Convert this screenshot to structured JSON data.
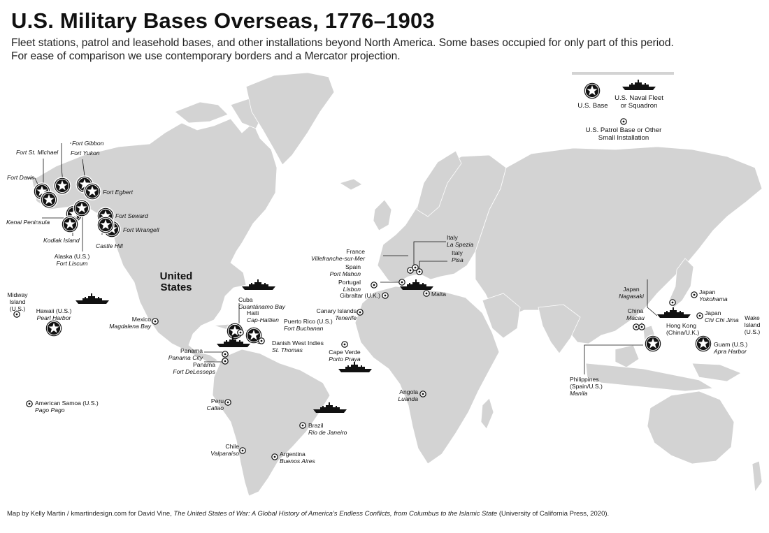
{
  "title": "U.S. Military Bases Overseas, 1776–1903",
  "subtitle_line1": "Fleet stations, patrol and leasehold bases, and other installations beyond North America. Some bases occupied for only part of this period.",
  "subtitle_line2": "For ease of comparison we use contemporary borders and a Mercator projection.",
  "country_label": "United States",
  "legend": {
    "base": "U.S. Base",
    "fleet": "U.S. Naval Fleet or Squadron",
    "patrol": "U.S. Patrol Base or Other Small Installation"
  },
  "labels": {
    "fort_gibbon": "Fort Gibbon",
    "fort_st_michael": "Fort St. Michael",
    "fort_yukon": "Fort Yukon",
    "fort_davis": "Fort Davis",
    "fort_egbert": "Fort Egbert",
    "fort_seward": "Fort Seward",
    "kenai": "Kenai Peninsula",
    "fort_wrangell": "Fort Wrangell",
    "kodiak": "Kodiak Island",
    "castle_hill": "Castle Hill",
    "alaska": "Alaska (U.S.)",
    "alaska_sub": "Fort Liscum",
    "midway": "Midway Island (U.S.)",
    "hawaii": "Hawaii (U.S.)",
    "hawaii_sub": "Pearl Harbor",
    "mexico": "Mexico",
    "mexico_sub": "Magdalena Bay",
    "cuba": "Cuba",
    "cuba_sub": "Guantánamo Bay",
    "haiti": "Haiti",
    "haiti_sub": "Cap-Haïtien",
    "puerto_rico": "Puerto Rico (U.S.)",
    "puerto_rico_sub": "Fort Buchanan",
    "danish_wi": "Danish West Indies",
    "danish_wi_sub": "St. Thomas",
    "panama1": "Panama",
    "panama1_sub": "Panama City",
    "panama2": "Panama",
    "panama2_sub": "Fort DeLesseps",
    "american_samoa": "American Samoa (U.S.)",
    "american_samoa_sub": "Pago Pago",
    "peru": "Peru",
    "peru_sub": "Callao",
    "chile": "Chile",
    "chile_sub": "Valparaíso",
    "argentina": "Argentina",
    "argentina_sub": "Buenos Aires",
    "brazil": "Brazil",
    "brazil_sub": "Rio de Janeiro",
    "cape_verde": "Cape Verde",
    "cape_verde_sub": "Porto Praya",
    "canary": "Canary Islands",
    "canary_sub": "Tenerife",
    "gibraltar": "Gibraltar (U.K.)",
    "portugal": "Portugal",
    "portugal_sub": "Lisbon",
    "spain": "Spain",
    "spain_sub": "Port Mahon",
    "france": "France",
    "france_sub": "Villefranche-sur-Mer",
    "italy1": "Italy",
    "italy1_sub": "La Spezia",
    "italy2": "Italy",
    "italy2_sub": "Pisa",
    "malta": "Malta",
    "angola": "Angola",
    "angola_sub": "Luanda",
    "japan1": "Japan",
    "japan1_sub": "Nagasaki",
    "japan2": "Japan",
    "japan2_sub": "Yokohama",
    "japan3": "Japan",
    "japan3_sub": "Chi Chi Jima",
    "china": "China",
    "china_sub": "Macau",
    "hong_kong": "Hong Kong (China/U.K.)",
    "wake": "Wake Island (U.S.)",
    "guam": "Guam (U.S.)",
    "guam_sub": "Apra Harbor",
    "philippines": "Philippines (Spain/U.S.)",
    "philippines_sub": "Manila"
  },
  "credit": {
    "prefix": "Map by Kelly Martin / kmartindesign.com for David Vine, ",
    "book": "The United States of War: A Global History of America’s Endless Conflicts, from Columbus to the Islamic State",
    "suffix": " (University of California Press, 2020)."
  },
  "colors": {
    "land": "#d3d3d3",
    "border": "#ffffff",
    "marker": "#111111"
  }
}
